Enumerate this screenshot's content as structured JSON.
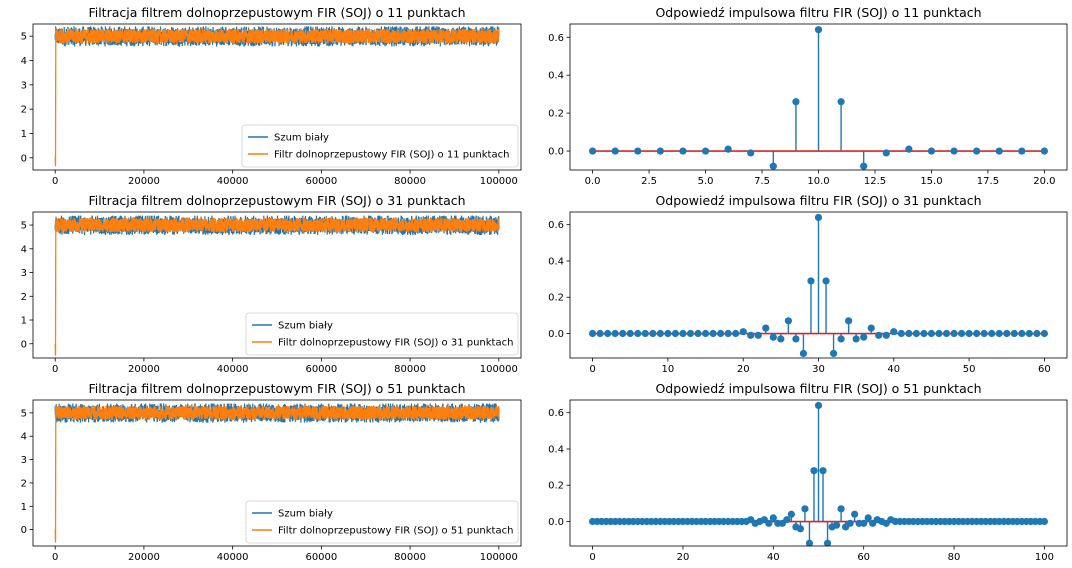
{
  "chart_data": [
    {
      "type": "line",
      "title": "Filtracja filtrem dolnoprzepustowym FIR (SOJ) o 11 punktach",
      "xlim": [
        -5000,
        105000
      ],
      "ylim": [
        -0.5,
        5.5
      ],
      "xticks": [
        0,
        20000,
        40000,
        60000,
        80000,
        100000
      ],
      "yticks": [
        0,
        1,
        2,
        3,
        4,
        5
      ],
      "legend_position": "lower-right",
      "series": [
        {
          "name": "Szum biały",
          "color": "#1f77b4",
          "mean": 5.0,
          "min": 4.55,
          "max": 5.4,
          "x_range": [
            0,
            100000
          ]
        },
        {
          "name": "Filtr dolnoprzepustowy FIR (SOJ) o 11 punktach",
          "color": "#ff7f0e",
          "mean": 5.0,
          "min": 4.7,
          "max": 5.3,
          "start_min": -0.35,
          "x_range": [
            0,
            100000
          ]
        }
      ]
    },
    {
      "type": "stem",
      "title": "Odpowiedź impulsowa filtru FIR (SOJ) o 11 punktach",
      "xlim": [
        -1,
        21
      ],
      "ylim": [
        -0.1,
        0.67
      ],
      "xticks": [
        "0.0",
        "2.5",
        "5.0",
        "7.5",
        "10.0",
        "12.5",
        "15.0",
        "17.5",
        "20.0"
      ],
      "xtick_values": [
        0,
        2.5,
        5,
        7.5,
        10,
        12.5,
        15,
        17.5,
        20
      ],
      "yticks": [
        "0.0",
        "0.2",
        "0.4",
        "0.6"
      ],
      "ytick_values": [
        0,
        0.2,
        0.4,
        0.6
      ],
      "baseline_color": "#d62728",
      "stem_color": "#1f77b4",
      "values": [
        0,
        0,
        0,
        0,
        0,
        0,
        0.01,
        -0.01,
        -0.08,
        0.26,
        0.64,
        0.26,
        -0.08,
        -0.01,
        0.01,
        0,
        0,
        0,
        0,
        0,
        0
      ]
    },
    {
      "type": "line",
      "title": "Filtracja filtrem dolnoprzepustowym FIR (SOJ) o 31 punktach",
      "xlim": [
        -5000,
        105000
      ],
      "ylim": [
        -0.6,
        5.55
      ],
      "xticks": [
        0,
        20000,
        40000,
        60000,
        80000,
        100000
      ],
      "yticks": [
        0,
        1,
        2,
        3,
        4,
        5
      ],
      "legend_position": "lower-right",
      "series": [
        {
          "name": "Szum biały",
          "color": "#1f77b4",
          "mean": 5.0,
          "min": 4.55,
          "max": 5.4,
          "x_range": [
            0,
            100000
          ]
        },
        {
          "name": "Filtr dolnoprzepustowy FIR (SOJ) o 31 punktach",
          "color": "#ff7f0e",
          "mean": 5.0,
          "min": 4.7,
          "max": 5.3,
          "start_min": -0.5,
          "x_range": [
            0,
            100000
          ]
        }
      ]
    },
    {
      "type": "stem",
      "title": "Odpowiedź impulsowa filtru FIR (SOJ) o 31 punktach",
      "xlim": [
        -3,
        63
      ],
      "ylim": [
        -0.135,
        0.67
      ],
      "xticks": [
        "0",
        "10",
        "20",
        "30",
        "40",
        "50",
        "60"
      ],
      "xtick_values": [
        0,
        10,
        20,
        30,
        40,
        50,
        60
      ],
      "yticks": [
        "0.0",
        "0.2",
        "0.4",
        "0.6"
      ],
      "ytick_values": [
        0,
        0.2,
        0.4,
        0.6
      ],
      "baseline_color": "#d62728",
      "stem_color": "#1f77b4",
      "values": [
        0,
        0,
        0,
        0,
        0,
        0,
        0,
        0,
        0,
        0,
        0,
        0,
        0,
        0,
        0,
        0,
        0,
        0,
        0,
        0,
        0.01,
        -0.01,
        -0.01,
        0.03,
        -0.02,
        -0.03,
        0.07,
        -0.03,
        -0.11,
        0.29,
        0.64,
        0.29,
        -0.11,
        -0.03,
        0.07,
        -0.03,
        -0.02,
        0.03,
        -0.01,
        -0.01,
        0.01,
        0,
        0,
        0,
        0,
        0,
        0,
        0,
        0,
        0,
        0,
        0,
        0,
        0,
        0,
        0,
        0,
        0,
        0,
        0,
        0
      ]
    },
    {
      "type": "line",
      "title": "Filtracja filtrem dolnoprzepustowym FIR (SOJ) o 51 punktach",
      "xlim": [
        -5000,
        105000
      ],
      "ylim": [
        -0.7,
        5.55
      ],
      "xticks": [
        0,
        20000,
        40000,
        60000,
        80000,
        100000
      ],
      "yticks": [
        0,
        1,
        2,
        3,
        4,
        5
      ],
      "legend_position": "lower-right",
      "series": [
        {
          "name": "Szum biały",
          "color": "#1f77b4",
          "mean": 5.0,
          "min": 4.55,
          "max": 5.4,
          "x_range": [
            0,
            100000
          ]
        },
        {
          "name": "Filtr dolnoprzepustowy FIR (SOJ) o 51 punktach",
          "color": "#ff7f0e",
          "mean": 5.0,
          "min": 4.7,
          "max": 5.3,
          "start_min": -0.55,
          "x_range": [
            0,
            100000
          ]
        }
      ]
    },
    {
      "type": "stem",
      "title": "Odpowiedź impulsowa filtru FIR (SOJ) o 51 punktach",
      "xlim": [
        -5,
        105
      ],
      "ylim": [
        -0.135,
        0.67
      ],
      "xticks": [
        "0",
        "20",
        "40",
        "60",
        "80",
        "100"
      ],
      "xtick_values": [
        0,
        20,
        40,
        60,
        80,
        100
      ],
      "yticks": [
        "0.0",
        "0.2",
        "0.4",
        "0.6"
      ],
      "ytick_values": [
        0,
        0.2,
        0.4,
        0.6
      ],
      "baseline_color": "#d62728",
      "stem_color": "#1f77b4",
      "values": [
        0,
        0,
        0,
        0,
        0,
        0,
        0,
        0,
        0,
        0,
        0,
        0,
        0,
        0,
        0,
        0,
        0,
        0,
        0,
        0,
        0,
        0,
        0,
        0,
        0,
        0,
        0,
        0,
        0,
        0,
        0,
        0,
        0,
        0,
        0,
        0.01,
        -0.01,
        0,
        0.01,
        -0.01,
        0.02,
        -0.01,
        -0.01,
        0.01,
        0.04,
        -0.03,
        -0.04,
        0.07,
        -0.12,
        0.28,
        0.64,
        0.28,
        -0.12,
        -0.03,
        -0.02,
        0.07,
        -0.03,
        -0.01,
        0.04,
        -0.01,
        -0.01,
        0.02,
        -0.01,
        0.01,
        0,
        -0.01,
        0.01,
        0,
        0,
        0,
        0,
        0,
        0,
        0,
        0,
        0,
        0,
        0,
        0,
        0,
        0,
        0,
        0,
        0,
        0,
        0,
        0,
        0,
        0,
        0,
        0,
        0,
        0,
        0,
        0,
        0,
        0,
        0,
        0,
        0,
        0
      ]
    }
  ]
}
